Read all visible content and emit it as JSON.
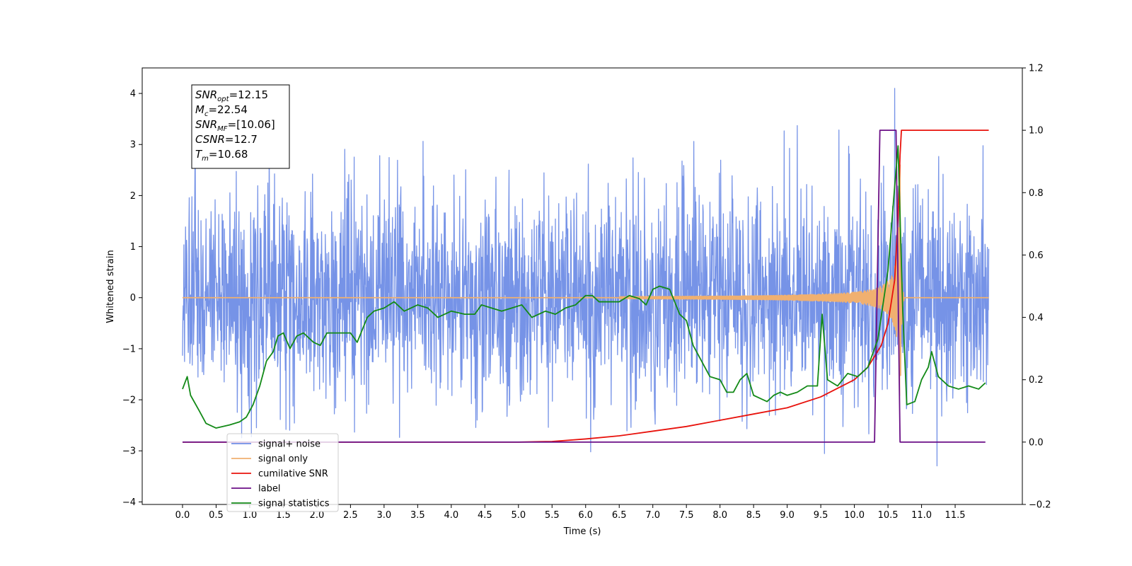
{
  "chart_data": {
    "type": "line",
    "xlabel": "Time (s)",
    "ylabel": "Whitened strain",
    "xlim": [
      -0.6,
      12.5
    ],
    "ylim": [
      -4.05,
      4.5
    ],
    "y2lim": [
      -0.2,
      1.2
    ],
    "x_ticks": [
      "0.0",
      "0.5",
      "1.0",
      "1.5",
      "2.0",
      "2.5",
      "3.0",
      "3.5",
      "4.0",
      "4.5",
      "5.0",
      "5.5",
      "6.0",
      "6.5",
      "7.0",
      "7.5",
      "8.0",
      "8.5",
      "9.0",
      "9.5",
      "10.0",
      "10.5",
      "11.0",
      "11.5"
    ],
    "y_ticks": [
      "4",
      "3",
      "2",
      "1",
      "0",
      "−1",
      "−2",
      "−3",
      "−4"
    ],
    "y2_ticks": [
      "1.2",
      "1.0",
      "0.8",
      "0.6",
      "0.4",
      "0.2",
      "0.0",
      "−0.2"
    ],
    "grid": false,
    "legend_position": "lower-left",
    "info_box": {
      "position": "top-left",
      "lines": [
        {
          "base": "SNR",
          "sub": "opt",
          "value": "=12.15"
        },
        {
          "base": "M",
          "sub": "c",
          "value": "=22.54"
        },
        {
          "base": "SNR",
          "sub": "MF",
          "value": "=[10.06]"
        },
        {
          "base": "CSNR",
          "sub": "",
          "value": "=12.7"
        },
        {
          "base": "T",
          "sub": "m",
          "value": "=10.68"
        }
      ]
    },
    "series": [
      {
        "name": "signal+ noise",
        "color": "#6f8de6",
        "axis": "left",
        "type": "noise",
        "x_range": [
          0.0,
          12.0
        ],
        "noise_std": 1.05,
        "min_value": -3.65,
        "max_value": 4.1,
        "peak_at": 10.6
      },
      {
        "name": "signal only",
        "color": "#f0b070",
        "axis": "left",
        "type": "chirp",
        "x_range": [
          0.0,
          12.0
        ],
        "merger_time": 10.68,
        "peak_amplitude": 2.6,
        "start_time": 6.5
      },
      {
        "name": "cumilative SNR",
        "color": "#e8120c",
        "axis": "right",
        "points": [
          [
            0.0,
            0.0
          ],
          [
            5.0,
            0.0
          ],
          [
            5.5,
            0.002
          ],
          [
            6.0,
            0.01
          ],
          [
            6.5,
            0.02
          ],
          [
            7.0,
            0.035
          ],
          [
            7.5,
            0.05
          ],
          [
            8.0,
            0.07
          ],
          [
            8.5,
            0.09
          ],
          [
            9.0,
            0.11
          ],
          [
            9.5,
            0.145
          ],
          [
            10.0,
            0.2
          ],
          [
            10.2,
            0.24
          ],
          [
            10.4,
            0.31
          ],
          [
            10.5,
            0.38
          ],
          [
            10.6,
            0.52
          ],
          [
            10.65,
            0.72
          ],
          [
            10.68,
            0.92
          ],
          [
            10.7,
            1.0
          ],
          [
            12.0,
            1.0
          ]
        ]
      },
      {
        "name": "label",
        "color": "#6b0f86",
        "axis": "right",
        "points": [
          [
            0.0,
            0.0
          ],
          [
            10.3,
            0.0
          ],
          [
            10.38,
            1.0
          ],
          [
            10.62,
            1.0
          ],
          [
            10.68,
            0.0
          ],
          [
            11.95,
            0.0
          ]
        ]
      },
      {
        "name": "signal statistics",
        "color": "#138a17",
        "axis": "right",
        "points": [
          [
            0.0,
            0.17
          ],
          [
            0.07,
            0.21
          ],
          [
            0.12,
            0.15
          ],
          [
            0.25,
            0.1
          ],
          [
            0.35,
            0.06
          ],
          [
            0.5,
            0.045
          ],
          [
            0.7,
            0.055
          ],
          [
            0.85,
            0.065
          ],
          [
            0.95,
            0.08
          ],
          [
            1.05,
            0.12
          ],
          [
            1.15,
            0.18
          ],
          [
            1.25,
            0.26
          ],
          [
            1.35,
            0.29
          ],
          [
            1.42,
            0.34
          ],
          [
            1.5,
            0.35
          ],
          [
            1.6,
            0.3
          ],
          [
            1.7,
            0.34
          ],
          [
            1.8,
            0.35
          ],
          [
            1.95,
            0.32
          ],
          [
            2.05,
            0.31
          ],
          [
            2.15,
            0.35
          ],
          [
            2.35,
            0.35
          ],
          [
            2.5,
            0.35
          ],
          [
            2.6,
            0.32
          ],
          [
            2.75,
            0.4
          ],
          [
            2.85,
            0.42
          ],
          [
            3.0,
            0.43
          ],
          [
            3.15,
            0.45
          ],
          [
            3.3,
            0.42
          ],
          [
            3.5,
            0.44
          ],
          [
            3.65,
            0.43
          ],
          [
            3.8,
            0.4
          ],
          [
            4.0,
            0.42
          ],
          [
            4.2,
            0.41
          ],
          [
            4.35,
            0.41
          ],
          [
            4.45,
            0.44
          ],
          [
            4.6,
            0.43
          ],
          [
            4.75,
            0.42
          ],
          [
            4.9,
            0.43
          ],
          [
            5.05,
            0.44
          ],
          [
            5.2,
            0.4
          ],
          [
            5.4,
            0.42
          ],
          [
            5.55,
            0.41
          ],
          [
            5.7,
            0.43
          ],
          [
            5.85,
            0.44
          ],
          [
            6.0,
            0.47
          ],
          [
            6.1,
            0.47
          ],
          [
            6.2,
            0.45
          ],
          [
            6.35,
            0.45
          ],
          [
            6.5,
            0.45
          ],
          [
            6.65,
            0.47
          ],
          [
            6.8,
            0.46
          ],
          [
            6.9,
            0.44
          ],
          [
            7.0,
            0.49
          ],
          [
            7.1,
            0.5
          ],
          [
            7.25,
            0.49
          ],
          [
            7.4,
            0.41
          ],
          [
            7.5,
            0.39
          ],
          [
            7.6,
            0.31
          ],
          [
            7.7,
            0.27
          ],
          [
            7.85,
            0.21
          ],
          [
            8.0,
            0.2
          ],
          [
            8.1,
            0.16
          ],
          [
            8.2,
            0.16
          ],
          [
            8.3,
            0.2
          ],
          [
            8.4,
            0.22
          ],
          [
            8.5,
            0.15
          ],
          [
            8.6,
            0.14
          ],
          [
            8.7,
            0.13
          ],
          [
            8.8,
            0.15
          ],
          [
            8.9,
            0.16
          ],
          [
            9.0,
            0.15
          ],
          [
            9.15,
            0.16
          ],
          [
            9.3,
            0.18
          ],
          [
            9.45,
            0.18
          ],
          [
            9.52,
            0.41
          ],
          [
            9.6,
            0.2
          ],
          [
            9.75,
            0.18
          ],
          [
            9.9,
            0.22
          ],
          [
            10.05,
            0.21
          ],
          [
            10.2,
            0.24
          ],
          [
            10.35,
            0.33
          ],
          [
            10.5,
            0.55
          ],
          [
            10.6,
            0.82
          ],
          [
            10.65,
            0.95
          ],
          [
            10.72,
            0.42
          ],
          [
            10.78,
            0.12
          ],
          [
            10.9,
            0.13
          ],
          [
            11.0,
            0.2
          ],
          [
            11.1,
            0.24
          ],
          [
            11.15,
            0.29
          ],
          [
            11.25,
            0.21
          ],
          [
            11.4,
            0.18
          ],
          [
            11.55,
            0.17
          ],
          [
            11.7,
            0.18
          ],
          [
            11.85,
            0.17
          ],
          [
            11.95,
            0.19
          ]
        ]
      }
    ]
  }
}
